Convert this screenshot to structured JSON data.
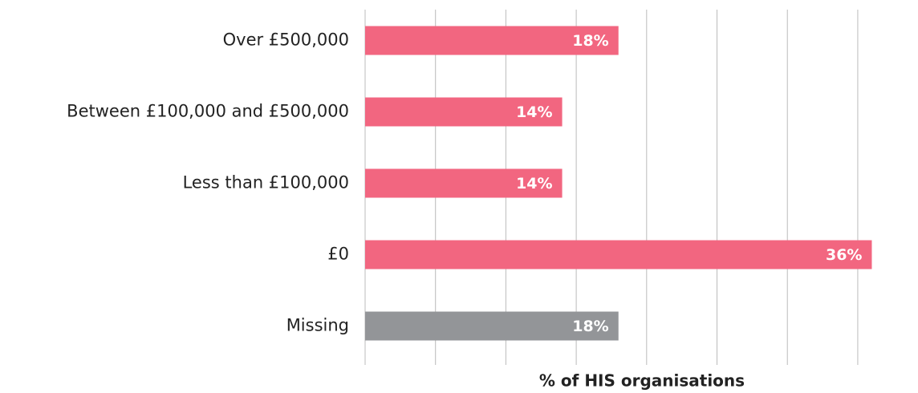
{
  "chart_data": {
    "type": "bar",
    "orientation": "horizontal",
    "categories": [
      "Over £500,000",
      "Between £100,000 and £500,000",
      "Less than £100,000",
      "£0",
      "Missing"
    ],
    "values": [
      18,
      14,
      14,
      36,
      18
    ],
    "value_labels": [
      "18%",
      "14%",
      "14%",
      "36%",
      "18%"
    ],
    "colors": [
      "#f26680",
      "#f26680",
      "#f26680",
      "#f26680",
      "#939598"
    ],
    "xlabel": "% of HIS organisations",
    "xlim": [
      0,
      37
    ],
    "xticks": [
      0,
      5,
      10,
      15,
      20,
      25,
      30,
      35
    ],
    "grid": true
  }
}
